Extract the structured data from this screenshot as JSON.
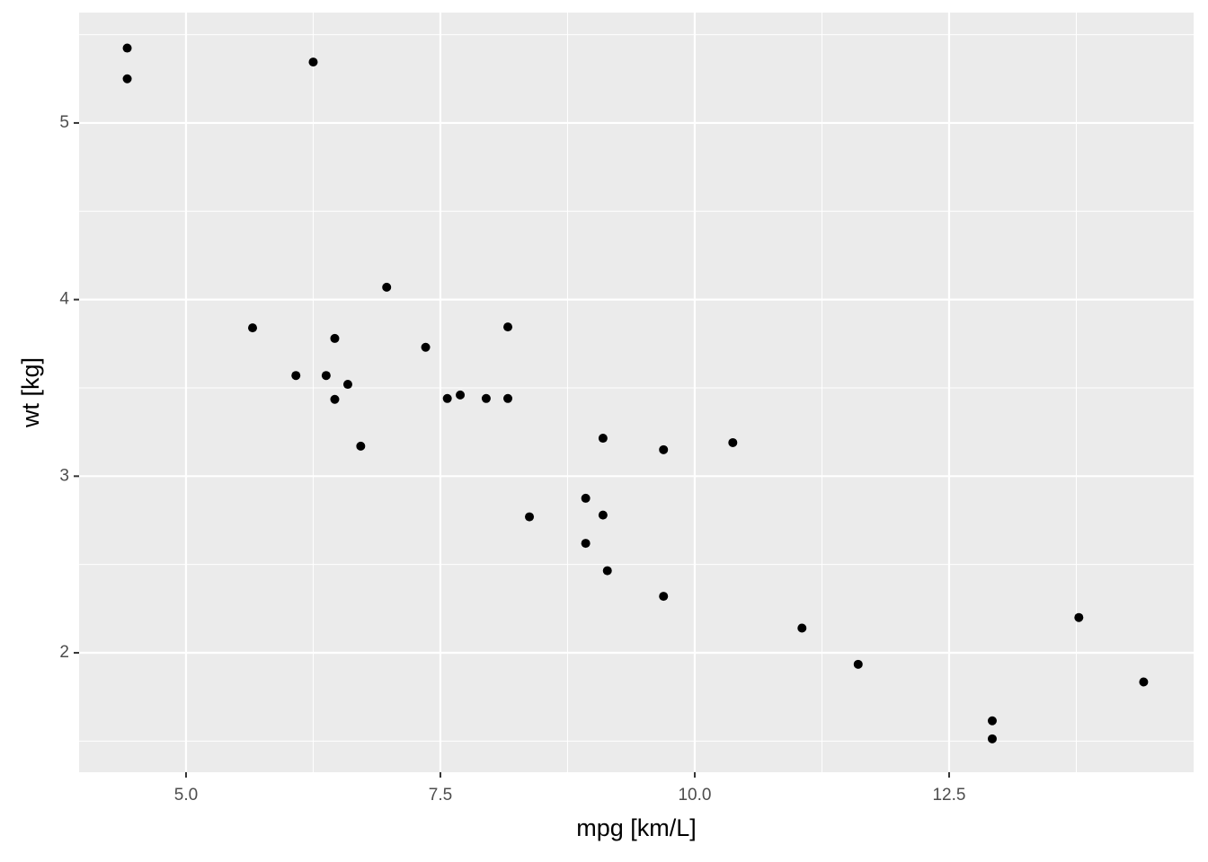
{
  "chart_data": {
    "type": "scatter",
    "x_label": "mpg [km/L]",
    "y_label": "wt [kg]",
    "x": [
      8.928,
      8.928,
      9.693,
      9.098,
      7.95,
      7.695,
      6.08,
      10.374,
      9.693,
      8.163,
      7.568,
      6.972,
      7.355,
      6.462,
      4.422,
      4.422,
      6.25,
      13.775,
      12.924,
      14.412,
      9.141,
      6.59,
      6.462,
      5.654,
      8.163,
      11.606,
      11.054,
      12.924,
      6.717,
      8.375,
      6.377,
      9.098
    ],
    "values": [
      2.62,
      2.875,
      2.32,
      3.215,
      3.44,
      3.46,
      3.57,
      3.19,
      3.15,
      3.44,
      3.44,
      4.07,
      3.73,
      3.78,
      5.25,
      5.424,
      5.345,
      2.2,
      1.615,
      1.835,
      2.465,
      3.52,
      3.435,
      3.84,
      3.845,
      1.935,
      2.14,
      1.513,
      3.17,
      2.77,
      3.57,
      2.78
    ],
    "color": "#000000",
    "xlim": [
      3.949,
      14.903
    ],
    "ylim": [
      1.324,
      5.625
    ],
    "xticks": [
      {
        "value": 5,
        "label": "5.0"
      },
      {
        "value": 7.5,
        "label": "7.5"
      },
      {
        "value": 10,
        "label": "10.0"
      },
      {
        "value": 12.5,
        "label": "12.5"
      }
    ],
    "yticks": [
      2,
      3,
      4,
      5
    ],
    "xminorticks": [
      6.25,
      8.75,
      11.25,
      13.75
    ],
    "yminorticks": [
      1.5,
      2.5,
      3.5,
      4.5,
      5.5
    ],
    "grid": true,
    "panel_color": "#EBEBEB"
  }
}
